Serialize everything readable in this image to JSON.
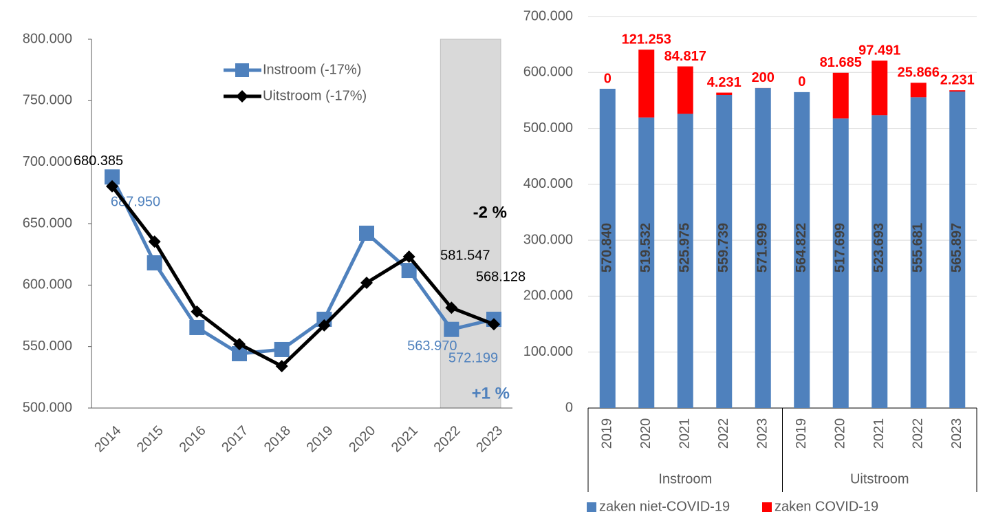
{
  "chart_data": [
    {
      "type": "line",
      "categories": [
        "2014",
        "2015",
        "2016",
        "2017",
        "2018",
        "2019",
        "2020",
        "2021",
        "2022",
        "2023"
      ],
      "series": [
        {
          "name": "Instroom (-17%)",
          "color": "#4f81bd",
          "marker": "square",
          "values": [
            687950,
            618100,
            565500,
            544200,
            547600,
            572200,
            642200,
            611900,
            563970,
            572199
          ],
          "value_labels": [
            "687.950",
            null,
            null,
            null,
            null,
            null,
            null,
            null,
            "563.970",
            "572.199"
          ]
        },
        {
          "name": "Uitstroom (-17%)",
          "color": "#000000",
          "marker": "diamond",
          "values": [
            680385,
            635400,
            578400,
            552000,
            534100,
            567200,
            601900,
            623100,
            581547,
            568128
          ],
          "value_labels": [
            "680.385",
            null,
            null,
            null,
            null,
            null,
            null,
            null,
            "581.547",
            "568.128"
          ]
        }
      ],
      "ylim": [
        500000,
        800000
      ],
      "yticks": [
        {
          "value": 500000,
          "label": "500.000"
        },
        {
          "value": 550000,
          "label": "550.000"
        },
        {
          "value": 600000,
          "label": "600.000"
        },
        {
          "value": 650000,
          "label": "650.000"
        },
        {
          "value": 700000,
          "label": "700.000"
        },
        {
          "value": 750000,
          "label": "750.000"
        },
        {
          "value": 800000,
          "label": "800.000"
        }
      ],
      "annotations": [
        "-2 %",
        "+1 %"
      ]
    },
    {
      "type": "stacked_bar",
      "categories": [
        "2019",
        "2020",
        "2021",
        "2022",
        "2023",
        "2019",
        "2020",
        "2021",
        "2022",
        "2023"
      ],
      "groups": [
        "Instroom",
        "Uitstroom"
      ],
      "series": [
        {
          "name": "zaken niet-COVID-19",
          "color": "#4f81bd",
          "values": [
            570840,
            519532,
            525975,
            559739,
            571999,
            564822,
            517699,
            523693,
            555681,
            565897
          ],
          "value_labels": [
            "570.840",
            "519.532",
            "525.975",
            "559.739",
            "571.999",
            "564.822",
            "517.699",
            "523.693",
            "555.681",
            "565.897"
          ]
        },
        {
          "name": "zaken COVID-19",
          "color": "#ff0000",
          "values": [
            0,
            121253,
            84817,
            4231,
            200,
            0,
            81685,
            97491,
            25866,
            2231
          ],
          "value_labels": [
            "0",
            "121.253",
            "84.817",
            "4.231",
            "200",
            "0",
            "81.685",
            "97.491",
            "25.866",
            "2.231"
          ]
        }
      ],
      "ylim": [
        0,
        700000
      ],
      "yticks": [
        0,
        {
          "value": 100000,
          "label": "100.000"
        },
        {
          "value": 200000,
          "label": "200.000"
        },
        {
          "value": 300000,
          "label": "300.000"
        },
        {
          "value": 400000,
          "label": "400.000"
        },
        {
          "value": 500000,
          "label": "500.000"
        },
        {
          "value": 600000,
          "label": "600.000"
        },
        {
          "value": 700000,
          "label": "700.000"
        }
      ],
      "grid": true
    }
  ]
}
